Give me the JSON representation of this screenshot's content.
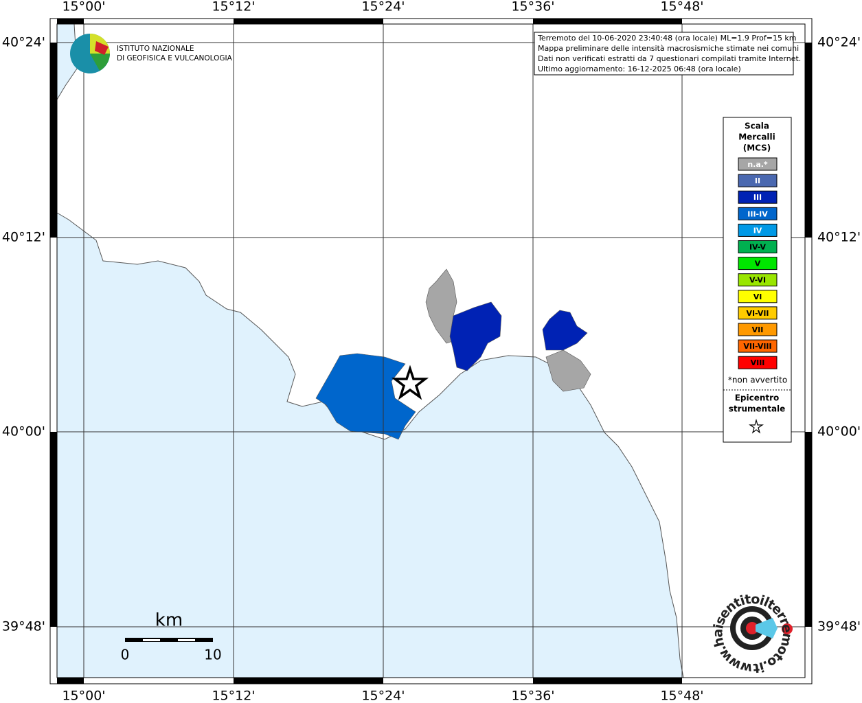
{
  "header": {
    "info_lines": [
      "Terremoto del 10-06-2020 23:40:48 (ora locale) ML=1.9 Prof=15 km",
      "Mappa preliminare delle intensità macrosismiche stimate nei comuni",
      "Dati non verificati estratti da 7 questionari compilati tramite Internet.",
      "Ultimo aggiornamento: 16-12-2025 06:48 (ora locale)"
    ],
    "logo": [
      "ISTITUTO NAZIONALE",
      "DI GEOFISICA E VULCANOLOGIA"
    ]
  },
  "map": {
    "lon_labels": [
      "15°00'",
      "15°12'",
      "15°24'",
      "15°36'",
      "15°48'"
    ],
    "lat_labels": [
      "40°24'",
      "40°12'",
      "40°00'",
      "39°48'"
    ],
    "scale": {
      "unit": "km",
      "start": "0",
      "end": "10"
    },
    "site_logo": "www.haisentitoilterremoto.it"
  },
  "legend": {
    "title": [
      "Scala",
      "Mercalli",
      "(MCS)"
    ],
    "items": [
      {
        "label": "n.a.*",
        "color": "#a6a6a6",
        "text_color": "#ffffff"
      },
      {
        "label": "II",
        "color": "#4a68b0",
        "text_color": "#ffffff"
      },
      {
        "label": "III",
        "color": "#0022b4",
        "text_color": "#ffffff"
      },
      {
        "label": "III-IV",
        "color": "#0066cc",
        "text_color": "#ffffff"
      },
      {
        "label": "IV",
        "color": "#0099e6",
        "text_color": "#ffffff"
      },
      {
        "label": "IV-V",
        "color": "#00b050",
        "text_color": "#000000"
      },
      {
        "label": "V",
        "color": "#00e600",
        "text_color": "#000000"
      },
      {
        "label": "V-VI",
        "color": "#99e600",
        "text_color": "#000000"
      },
      {
        "label": "VI",
        "color": "#ffff00",
        "text_color": "#000000"
      },
      {
        "label": "VI-VII",
        "color": "#ffcc00",
        "text_color": "#000000"
      },
      {
        "label": "VII",
        "color": "#ff9900",
        "text_color": "#000000"
      },
      {
        "label": "VII-VIII",
        "color": "#ff6600",
        "text_color": "#000000"
      },
      {
        "label": "VIII",
        "color": "#ff0000",
        "text_color": "#000000"
      }
    ],
    "note": "*non avvertito",
    "epicentre": [
      "Epicentro",
      "strumentale"
    ]
  }
}
